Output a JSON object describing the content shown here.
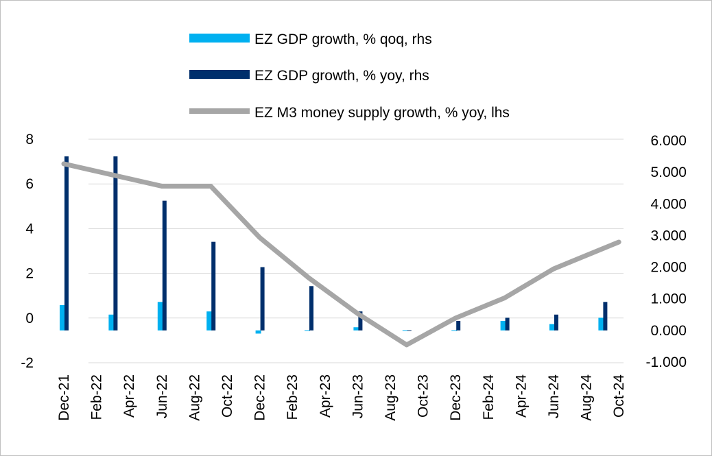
{
  "chart_data": {
    "type": "bar+line",
    "categories": [
      "Dec-21",
      "Feb-22",
      "Apr-22",
      "Jun-22",
      "Aug-22",
      "Oct-22",
      "Dec-22",
      "Feb-23",
      "Apr-23",
      "Jun-23",
      "Aug-23",
      "Oct-23",
      "Dec-23",
      "Feb-24",
      "Apr-24",
      "Jun-24",
      "Aug-24",
      "Oct-24"
    ],
    "x_tick_labels": [
      "Dec-21",
      "Feb-22",
      "Apr-22",
      "Jun-22",
      "Aug-22",
      "Oct-22",
      "Dec-22",
      "Feb-23",
      "Apr-23",
      "Jun-23",
      "Aug-23",
      "Oct-23",
      "Dec-23",
      "Feb-24",
      "Apr-24",
      "Jun-24",
      "Aug-24",
      "Oct-24"
    ],
    "left_axis": {
      "ylim": [
        -2,
        8
      ],
      "ticks": [
        "-2",
        "0",
        "2",
        "4",
        "6",
        "8"
      ],
      "tick_values": [
        -2,
        0,
        2,
        4,
        6,
        8
      ]
    },
    "right_axis": {
      "ylim": [
        -1,
        6
      ],
      "ticks": [
        "-1.000",
        "0.000",
        "1.000",
        "2.000",
        "3.000",
        "4.000",
        "5.000",
        "6.000"
      ],
      "tick_values": [
        -1,
        0,
        1,
        2,
        3,
        4,
        5,
        6
      ]
    },
    "series": [
      {
        "name": "EZ GDP growth, % qoq, rhs",
        "kind": "bar",
        "axis": "right",
        "color": "#00B0F0",
        "points": [
          {
            "i": 0,
            "y": 0.8
          },
          {
            "i": 1.5,
            "y": 0.5
          },
          {
            "i": 3,
            "y": 0.9
          },
          {
            "i": 4.5,
            "y": 0.6
          },
          {
            "i": 6,
            "y": -0.1
          },
          {
            "i": 7.5,
            "y": 0.0
          },
          {
            "i": 9,
            "y": 0.1
          },
          {
            "i": 10.5,
            "y": 0.0
          },
          {
            "i": 12,
            "y": 0.0
          },
          {
            "i": 13.5,
            "y": 0.3
          },
          {
            "i": 15,
            "y": 0.2
          },
          {
            "i": 16.5,
            "y": 0.4
          }
        ]
      },
      {
        "name": "EZ GDP growth, % yoy, rhs",
        "kind": "bar",
        "axis": "right",
        "color": "#002F6C",
        "points": [
          {
            "i": 0,
            "y": 5.5
          },
          {
            "i": 1.5,
            "y": 5.5
          },
          {
            "i": 3,
            "y": 4.1
          },
          {
            "i": 4.5,
            "y": 2.8
          },
          {
            "i": 6,
            "y": 2.0
          },
          {
            "i": 7.5,
            "y": 1.4
          },
          {
            "i": 9,
            "y": 0.6
          },
          {
            "i": 10.5,
            "y": 0.0
          },
          {
            "i": 12,
            "y": 0.3
          },
          {
            "i": 13.5,
            "y": 0.4
          },
          {
            "i": 15,
            "y": 0.5
          },
          {
            "i": 16.5,
            "y": 0.9
          }
        ]
      },
      {
        "name": "EZ M3 money supply growth, % yoy, lhs",
        "kind": "line",
        "axis": "left",
        "color": "#A6A6A6",
        "points": [
          {
            "i": 0,
            "y": 6.9
          },
          {
            "i": 1.5,
            "y": 6.4
          },
          {
            "i": 3,
            "y": 5.9
          },
          {
            "i": 4.5,
            "y": 5.9
          },
          {
            "i": 6,
            "y": 3.6
          },
          {
            "i": 7.5,
            "y": 1.8
          },
          {
            "i": 9,
            "y": 0.2
          },
          {
            "i": 10.5,
            "y": -1.2
          },
          {
            "i": 12,
            "y": 0.0
          },
          {
            "i": 13.5,
            "y": 0.9
          },
          {
            "i": 15,
            "y": 2.2
          },
          {
            "i": 16.5,
            "y": 3.1
          },
          {
            "i": 17,
            "y": 3.4
          }
        ]
      }
    ],
    "legend_position": "top-center",
    "grid": true
  }
}
